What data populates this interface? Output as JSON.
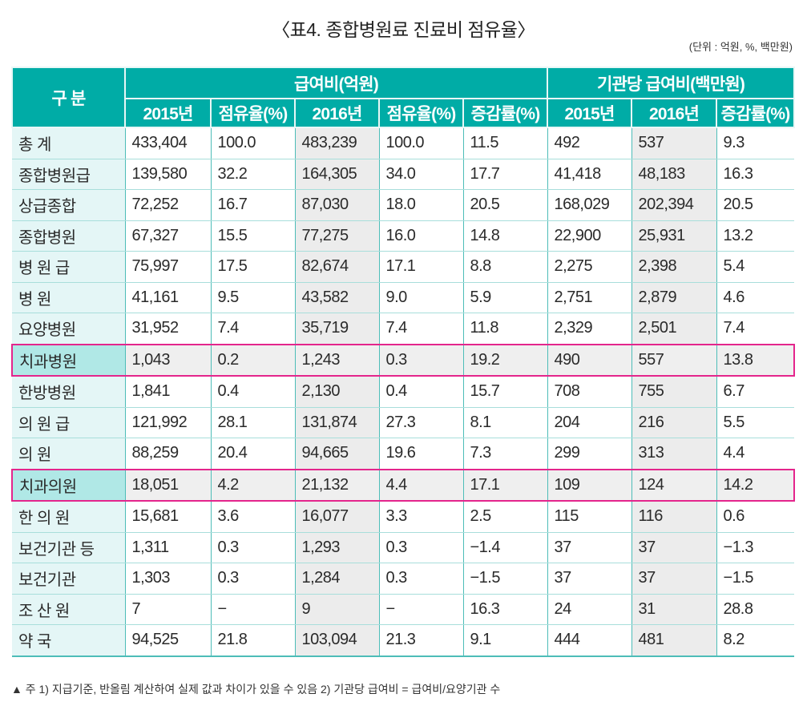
{
  "title": "〈표4. 종합병원료 진료비 점유율〉",
  "unit": "(단위 : 억원, %, 백만원)",
  "header": {
    "category": "구 분",
    "group1": "급여비(억원)",
    "group2": "기관당 급여비(백만원)",
    "cols": [
      "2015년",
      "점유율(%)",
      "2016년",
      "점유율(%)",
      "증감률(%)",
      "2015년",
      "2016년",
      "증감률(%)"
    ]
  },
  "rows": [
    {
      "label": "총 계",
      "values": [
        "433,404",
        "100.0",
        "483,239",
        "100.0",
        "11.5",
        "492",
        "537",
        "9.3"
      ]
    },
    {
      "label": "종합병원급",
      "values": [
        "139,580",
        "32.2",
        "164,305",
        "34.0",
        "17.7",
        "41,418",
        "48,183",
        "16.3"
      ]
    },
    {
      "label": "상급종합",
      "values": [
        "72,252",
        "16.7",
        "87,030",
        "18.0",
        "20.5",
        "168,029",
        "202,394",
        "20.5"
      ]
    },
    {
      "label": "종합병원",
      "values": [
        "67,327",
        "15.5",
        "77,275",
        "16.0",
        "14.8",
        "22,900",
        "25,931",
        "13.2"
      ]
    },
    {
      "label": "병 원 급",
      "values": [
        "75,997",
        "17.5",
        "82,674",
        "17.1",
        "8.8",
        "2,275",
        "2,398",
        "5.4"
      ]
    },
    {
      "label": "병 원",
      "values": [
        "41,161",
        "9.5",
        "43,582",
        "9.0",
        "5.9",
        "2,751",
        "2,879",
        "4.6"
      ]
    },
    {
      "label": "요양병원",
      "values": [
        "31,952",
        "7.4",
        "35,719",
        "7.4",
        "11.8",
        "2,329",
        "2,501",
        "7.4"
      ]
    },
    {
      "label": "치과병원",
      "highlight": true,
      "values": [
        "1,043",
        "0.2",
        "1,243",
        "0.3",
        "19.2",
        "490",
        "557",
        "13.8"
      ]
    },
    {
      "label": "한방병원",
      "values": [
        "1,841",
        "0.4",
        "2,130",
        "0.4",
        "15.7",
        "708",
        "755",
        "6.7"
      ]
    },
    {
      "label": "의 원 급",
      "values": [
        "121,992",
        "28.1",
        "131,874",
        "27.3",
        "8.1",
        "204",
        "216",
        "5.5"
      ]
    },
    {
      "label": "의 원",
      "values": [
        "88,259",
        "20.4",
        "94,665",
        "19.6",
        "7.3",
        "299",
        "313",
        "4.4"
      ]
    },
    {
      "label": "치과의원",
      "highlight": true,
      "values": [
        "18,051",
        "4.2",
        "21,132",
        "4.4",
        "17.1",
        "109",
        "124",
        "14.2"
      ]
    },
    {
      "label": "한 의 원",
      "values": [
        "15,681",
        "3.6",
        "16,077",
        "3.3",
        "2.5",
        "115",
        "116",
        "0.6"
      ]
    },
    {
      "label": "보건기관 등",
      "values": [
        "1,311",
        "0.3",
        "1,293",
        "0.3",
        "−1.4",
        "37",
        "37",
        "−1.3"
      ]
    },
    {
      "label": "보건기관",
      "values": [
        "1,303",
        "0.3",
        "1,284",
        "0.3",
        "−1.5",
        "37",
        "37",
        "−1.5"
      ]
    },
    {
      "label": "조 산 원",
      "values": [
        "7",
        "−",
        "9",
        "−",
        "16.3",
        "24",
        "31",
        "28.8"
      ]
    },
    {
      "label": "약 국",
      "values": [
        "94,525",
        "21.8",
        "103,094",
        "21.3",
        "9.1",
        "444",
        "481",
        "8.2"
      ]
    }
  ],
  "footnote": "▲ 주 1) 지급기준, 반올림 계산하여 실제 값과 차이가 있을 수 있음  2) 기관당 급여비 = 급여비/요양기관 수"
}
